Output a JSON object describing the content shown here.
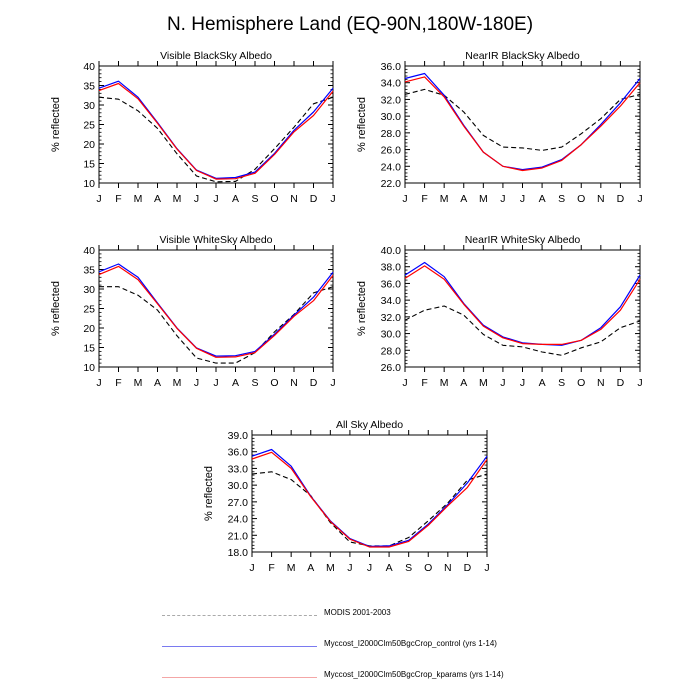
{
  "title": "N. Hemisphere Land (EQ-90N,180W-180E)",
  "legend": [
    {
      "name": "MODIS 2001-2003",
      "style": "dashed",
      "color": "#000000",
      "legend_color": "#aaaaaa"
    },
    {
      "name": "Myccost_I2000Clm50BgcCrop_control (yrs 1-14)",
      "style": "solid",
      "color": "#0000ff",
      "legend_color": "#7a7af0"
    },
    {
      "name": "Myccost_I2000Clm50BgcCrop_kparams (yrs 1-14)",
      "style": "solid",
      "color": "#ff0000",
      "legend_color": "#f4a6a6"
    }
  ],
  "chart_data": [
    {
      "type": "line",
      "title": "Visible BlackSky Albedo",
      "xlabel": "",
      "ylabel": "% reflected",
      "categories": [
        "J",
        "F",
        "M",
        "A",
        "M",
        "J",
        "J",
        "A",
        "S",
        "O",
        "N",
        "D",
        "J"
      ],
      "ylim": [
        10,
        40
      ],
      "yticks": [
        "10",
        "15",
        "20",
        "25",
        "30",
        "35",
        "40"
      ],
      "grid": false,
      "series": [
        {
          "name": "MODIS 2001-2003",
          "values": [
            32.0,
            31.5,
            28.5,
            24.0,
            17.5,
            11.8,
            10.3,
            10.4,
            13.5,
            18.8,
            24.3,
            30.3,
            32.0
          ]
        },
        {
          "name": "Myccost_I2000Clm50BgcCrop_control (yrs 1-14)",
          "values": [
            34.3,
            36.1,
            32.0,
            25.5,
            18.8,
            13.3,
            11.2,
            11.4,
            12.8,
            17.6,
            23.5,
            28.2,
            34.3
          ]
        },
        {
          "name": "Myccost_I2000Clm50BgcCrop_kparams (yrs 1-14)",
          "values": [
            33.7,
            35.5,
            31.6,
            25.3,
            18.7,
            13.2,
            11.0,
            11.1,
            12.5,
            17.3,
            23.1,
            27.3,
            33.5
          ]
        }
      ]
    },
    {
      "type": "line",
      "title": "NearIR BlackSky Albedo",
      "xlabel": "",
      "ylabel": "% reflected",
      "categories": [
        "J",
        "F",
        "M",
        "A",
        "M",
        "J",
        "J",
        "A",
        "S",
        "O",
        "N",
        "D",
        "J"
      ],
      "ylim": [
        22,
        36
      ],
      "yticks": [
        "22.0",
        "24.0",
        "26.0",
        "28.0",
        "30.0",
        "32.0",
        "34.0",
        "36.0"
      ],
      "grid": false,
      "series": [
        {
          "name": "MODIS 2001-2003",
          "values": [
            32.6,
            33.2,
            32.5,
            30.5,
            27.7,
            26.3,
            26.2,
            25.9,
            26.3,
            27.9,
            29.7,
            32.0,
            32.6
          ]
        },
        {
          "name": "Myccost_I2000Clm50BgcCrop_control (yrs 1-14)",
          "values": [
            34.5,
            35.1,
            32.5,
            28.9,
            25.7,
            24.0,
            23.6,
            23.9,
            24.8,
            26.6,
            29.0,
            31.6,
            34.5
          ]
        },
        {
          "name": "Myccost_I2000Clm50BgcCrop_kparams (yrs 1-14)",
          "values": [
            34.1,
            34.7,
            32.3,
            28.8,
            25.7,
            24.0,
            23.5,
            23.8,
            24.7,
            26.6,
            28.8,
            31.2,
            34.0
          ]
        }
      ]
    },
    {
      "type": "line",
      "title": "Visible WhiteSky Albedo",
      "xlabel": "",
      "ylabel": "% reflected",
      "categories": [
        "J",
        "F",
        "M",
        "A",
        "M",
        "J",
        "J",
        "A",
        "S",
        "O",
        "N",
        "D",
        "J"
      ],
      "ylim": [
        10,
        40
      ],
      "yticks": [
        "10",
        "15",
        "20",
        "25",
        "30",
        "35",
        "40"
      ],
      "grid": false,
      "series": [
        {
          "name": "MODIS 2001-2003",
          "values": [
            30.6,
            30.6,
            28.4,
            24.6,
            18.0,
            12.3,
            11.0,
            11.0,
            13.7,
            19.0,
            23.5,
            29.0,
            30.6
          ]
        },
        {
          "name": "Myccost_I2000Clm50BgcCrop_control (yrs 1-14)",
          "values": [
            34.4,
            36.4,
            33.0,
            26.4,
            20.0,
            14.9,
            12.8,
            12.9,
            14.0,
            18.4,
            23.3,
            27.9,
            34.3
          ]
        },
        {
          "name": "Myccost_I2000Clm50BgcCrop_kparams (yrs 1-14)",
          "values": [
            33.7,
            35.8,
            32.4,
            26.2,
            19.9,
            14.8,
            12.5,
            12.6,
            13.7,
            18.1,
            23.0,
            27.0,
            33.5
          ]
        }
      ]
    },
    {
      "type": "line",
      "title": "NearIR WhiteSky Albedo",
      "xlabel": "",
      "ylabel": "% reflected",
      "categories": [
        "J",
        "F",
        "M",
        "A",
        "M",
        "J",
        "J",
        "A",
        "S",
        "O",
        "N",
        "D",
        "J"
      ],
      "ylim": [
        26,
        40
      ],
      "yticks": [
        "26.0",
        "28.0",
        "30.0",
        "32.0",
        "34.0",
        "36.0",
        "38.0",
        "40.0"
      ],
      "grid": false,
      "series": [
        {
          "name": "MODIS 2001-2003",
          "values": [
            31.6,
            32.8,
            33.3,
            32.2,
            29.9,
            28.6,
            28.4,
            27.8,
            27.4,
            28.3,
            29.0,
            30.7,
            31.5
          ]
        },
        {
          "name": "Myccost_I2000Clm50BgcCrop_control (yrs 1-14)",
          "values": [
            37.0,
            38.5,
            36.8,
            33.6,
            31.0,
            29.6,
            28.9,
            28.7,
            28.6,
            29.2,
            30.7,
            33.2,
            37.0
          ]
        },
        {
          "name": "Myccost_I2000Clm50BgcCrop_kparams (yrs 1-14)",
          "values": [
            36.6,
            38.1,
            36.5,
            33.5,
            30.9,
            29.5,
            28.8,
            28.7,
            28.7,
            29.2,
            30.5,
            32.8,
            36.5
          ]
        }
      ]
    },
    {
      "type": "line",
      "title": "All Sky Albedo",
      "xlabel": "",
      "ylabel": "% reflected",
      "categories": [
        "J",
        "F",
        "M",
        "A",
        "M",
        "J",
        "J",
        "A",
        "S",
        "O",
        "N",
        "D",
        "J"
      ],
      "ylim": [
        18,
        39
      ],
      "yticks": [
        "18.0",
        "21.0",
        "24.0",
        "27.0",
        "30.0",
        "33.0",
        "36.0",
        "39.0"
      ],
      "grid": false,
      "series": [
        {
          "name": "MODIS 2001-2003",
          "values": [
            32.0,
            32.4,
            31.0,
            28.1,
            23.3,
            19.8,
            19.1,
            19.1,
            20.6,
            23.6,
            26.8,
            30.9,
            32.0
          ]
        },
        {
          "name": "Myccost_I2000Clm50BgcCrop_control (yrs 1-14)",
          "values": [
            35.2,
            36.4,
            33.4,
            28.0,
            23.6,
            20.4,
            19.0,
            19.1,
            20.1,
            23.0,
            26.5,
            30.4,
            35.2
          ]
        },
        {
          "name": "Myccost_I2000Clm50BgcCrop_kparams (yrs 1-14)",
          "values": [
            34.7,
            35.9,
            33.0,
            27.9,
            23.5,
            20.3,
            18.9,
            18.9,
            19.9,
            22.8,
            26.3,
            29.6,
            34.6
          ]
        }
      ]
    }
  ]
}
